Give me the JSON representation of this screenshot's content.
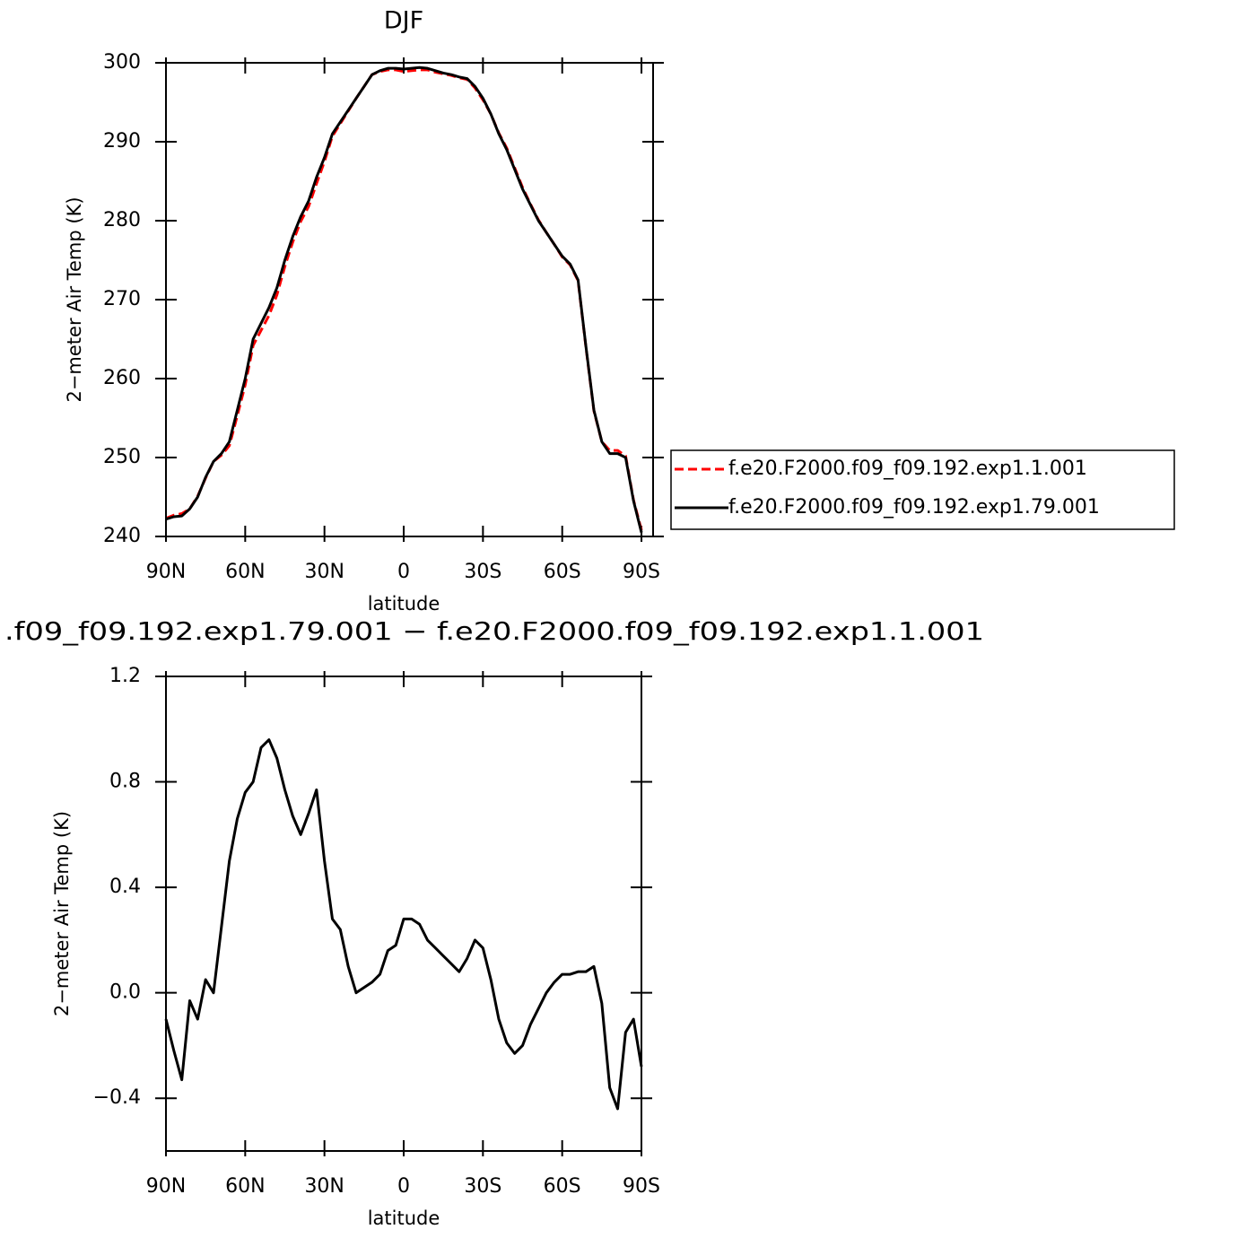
{
  "chart_data": [
    {
      "type": "line",
      "title": "DJF",
      "xlabel": "latitude",
      "ylabel": "2−meter Air Temp (K)",
      "x": [
        90,
        87,
        84,
        81,
        78,
        75,
        72,
        69,
        66,
        63,
        60,
        57,
        54,
        51,
        48,
        45,
        42,
        39,
        36,
        33,
        30,
        27,
        24,
        21,
        18,
        15,
        12,
        9,
        6,
        3,
        0,
        -3,
        -6,
        -9,
        -12,
        -15,
        -18,
        -21,
        -24,
        -27,
        -30,
        -33,
        -36,
        -39,
        -42,
        -45,
        -48,
        -51,
        -54,
        -57,
        -60,
        -63,
        -66,
        -69,
        -72,
        -75,
        -78,
        -81,
        -84,
        -87,
        -90
      ],
      "series": [
        {
          "name": "f.e20.F2000.f09_f09.192.exp1.1.001",
          "color": "#ff0000",
          "style": "dashed",
          "values": [
            242.3,
            242.7,
            242.9,
            243.5,
            245.1,
            247.4,
            249.5,
            250.3,
            251.5,
            255.3,
            259.2,
            264.2,
            266.1,
            268,
            270.6,
            274.2,
            277.3,
            279.9,
            281.8,
            284.7,
            287.5,
            290.7,
            292.3,
            293.9,
            295.5,
            297,
            298.5,
            298.9,
            299.1,
            299.1,
            298.9,
            299,
            299.1,
            299.1,
            298.8,
            298.6,
            298.4,
            298.1,
            297.9,
            296.8,
            295.3,
            293.5,
            291.1,
            289.2,
            286.7,
            284.2,
            282.1,
            280.1,
            278.5,
            277,
            275.4,
            274.4,
            272.4,
            263.9,
            255.9,
            252,
            250.9,
            250.9,
            250.2,
            244.6,
            240.8
          ]
        },
        {
          "name": "f.e20.F2000.f09_f09.192.exp1.79.001",
          "color": "#000000",
          "style": "solid",
          "values": [
            242.2,
            242.5,
            242.6,
            243.5,
            245,
            247.5,
            249.5,
            250.5,
            252,
            256,
            260,
            265,
            267,
            269,
            271.5,
            275,
            278,
            280.5,
            282.5,
            285.5,
            288,
            291,
            292.5,
            294,
            295.5,
            297,
            298.5,
            299,
            299.3,
            299.3,
            299.2,
            299.3,
            299.4,
            299.3,
            299,
            298.7,
            298.5,
            298.2,
            298,
            297,
            295.5,
            293.5,
            291,
            289,
            286.5,
            284,
            282,
            280,
            278.5,
            277,
            275.5,
            274.5,
            272.5,
            264,
            256,
            252,
            250.5,
            250.5,
            250,
            244.5,
            240.5
          ]
        }
      ],
      "xlim": [
        90,
        -94.4
      ],
      "ylim": [
        240,
        300
      ],
      "xticks": [
        {
          "value": 90,
          "label": "90N"
        },
        {
          "value": 60,
          "label": "60N"
        },
        {
          "value": 30,
          "label": "30N"
        },
        0,
        {
          "value": -30,
          "label": "30S"
        },
        {
          "value": -60,
          "label": "60S"
        },
        {
          "value": -90,
          "label": "90S"
        }
      ],
      "yticks": [
        240,
        250,
        260,
        270,
        280,
        290,
        300
      ],
      "legend": "right"
    },
    {
      "type": "line",
      "title": ".f09_f09.192.exp1.79.001 − f.e20.F2000.f09_f09.192.exp1.1.001",
      "xlabel": "latitude",
      "ylabel": "2−meter Air Temp (K)",
      "x": [
        90,
        87,
        84,
        81,
        78,
        75,
        72,
        69,
        66,
        63,
        60,
        57,
        54,
        51,
        48,
        45,
        42,
        39,
        36,
        33,
        30,
        27,
        24,
        21,
        18,
        15,
        12,
        9,
        6,
        3,
        0,
        -3,
        -6,
        -9,
        -12,
        -15,
        -18,
        -21,
        -24,
        -27,
        -30,
        -33,
        -36,
        -39,
        -42,
        -45,
        -48,
        -51,
        -54,
        -57,
        -60,
        -63,
        -66,
        -69,
        -72,
        -75,
        -78,
        -81,
        -84,
        -87,
        -90
      ],
      "series": [
        {
          "color": "#000000",
          "style": "solid",
          "values": [
            -0.1,
            -0.22,
            -0.33,
            -0.03,
            -0.1,
            0.05,
            0.0,
            0.25,
            0.5,
            0.66,
            0.76,
            0.8,
            0.93,
            0.96,
            0.89,
            0.77,
            0.67,
            0.6,
            0.68,
            0.77,
            0.5,
            0.28,
            0.24,
            0.1,
            0.0,
            0.02,
            0.04,
            0.07,
            0.16,
            0.18,
            0.28,
            0.28,
            0.26,
            0.2,
            0.17,
            0.14,
            0.11,
            0.08,
            0.13,
            0.2,
            0.17,
            0.05,
            -0.1,
            -0.19,
            -0.23,
            -0.2,
            -0.12,
            -0.06,
            0.0,
            0.04,
            0.07,
            0.07,
            0.08,
            0.08,
            0.1,
            -0.04,
            -0.36,
            -0.44,
            -0.15,
            -0.1,
            -0.28
          ]
        }
      ],
      "xlim": [
        90,
        -90
      ],
      "ylim": [
        -0.6,
        1.2
      ],
      "xticks": [
        {
          "value": 90,
          "label": "90N"
        },
        {
          "value": 60,
          "label": "60N"
        },
        {
          "value": 30,
          "label": "30N"
        },
        0,
        {
          "value": -30,
          "label": "30S"
        },
        {
          "value": -60,
          "label": "60S"
        },
        {
          "value": -90,
          "label": "90S"
        }
      ],
      "yticks": [
        {
          "value": -0.4,
          "label": "−0.4"
        },
        {
          "value": 0,
          "label": "0.0"
        },
        0.4,
        0.8,
        1.2
      ]
    }
  ]
}
